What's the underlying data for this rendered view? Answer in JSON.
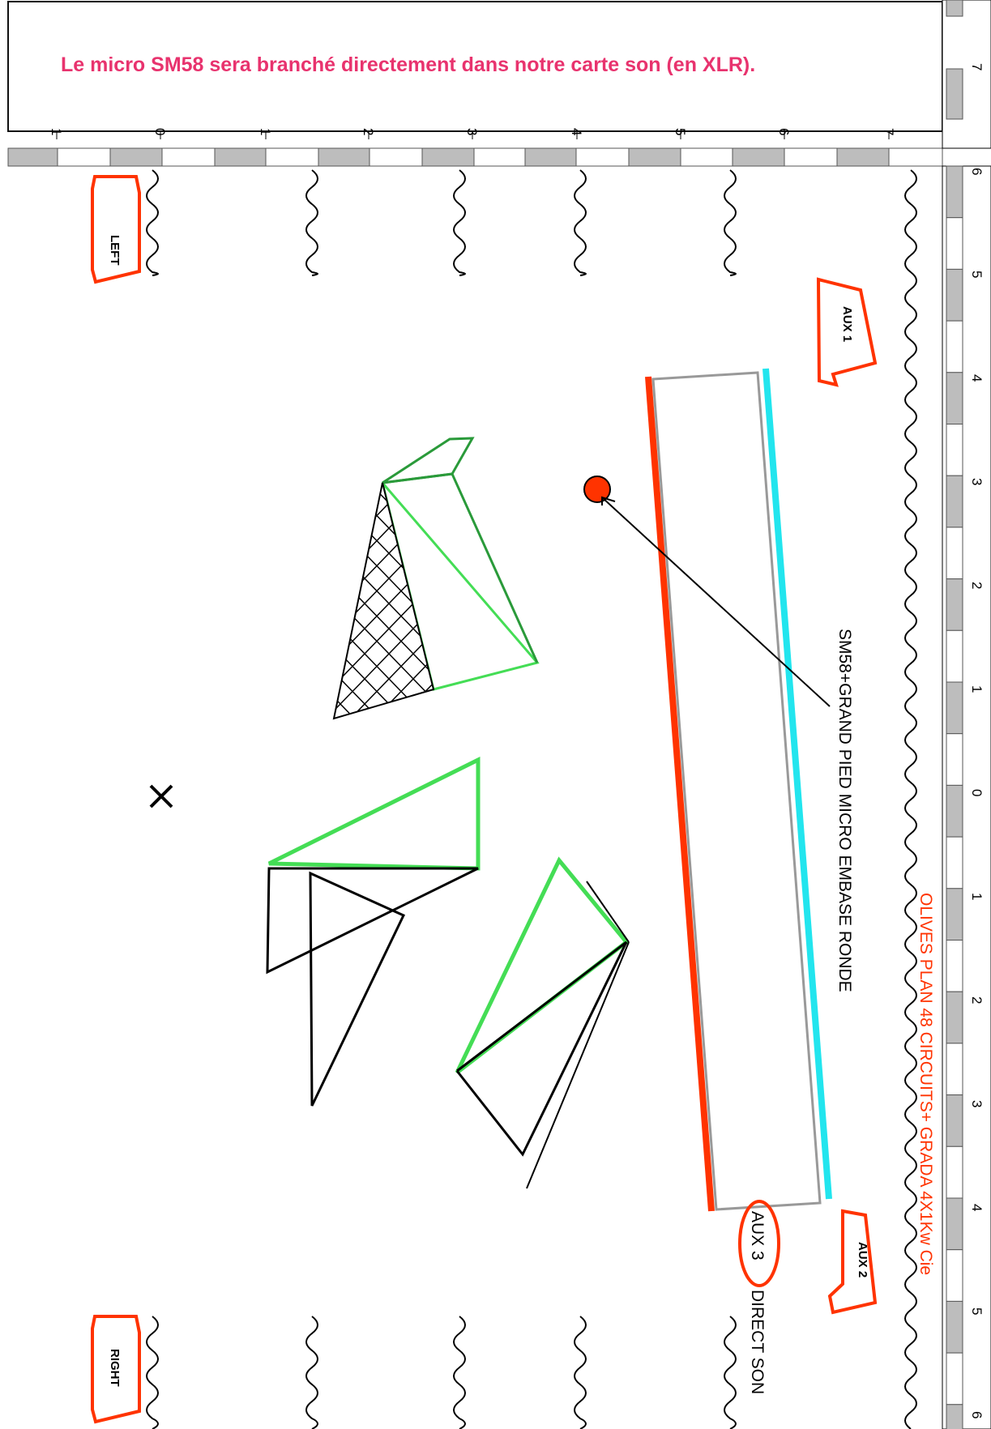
{
  "note": {
    "text": "Le micro SM58 sera branché directement dans notre carte son (en XLR).",
    "color": "#e8336e"
  },
  "ruler_top": {
    "labels": [
      "1",
      "0",
      "1",
      "2",
      "3",
      "4",
      "5",
      "6",
      "7"
    ]
  },
  "ruler_right": {
    "labels": [
      "6",
      "5",
      "4",
      "3",
      "2",
      "1",
      "0",
      "1",
      "2",
      "3",
      "4",
      "5",
      "6"
    ],
    "corner_label": "7"
  },
  "tags": {
    "left": "LEFT",
    "right": "RIGHT",
    "aux1": "AUX 1",
    "aux2": "AUX 2"
  },
  "labels": {
    "sm58": "SM58+GRAND PIED MICRO EMBASE RONDE",
    "aux3": "AUX 3",
    "direct_son": "DIRECT SON",
    "olives": "OLIVES PLAN  48 CIRCUITS+ GRADA 4X1Kw Cie"
  },
  "colors": {
    "accent_red": "#ff3300",
    "cyan": "#22e5ee",
    "green_light": "#44dd55",
    "green_dark": "#2a9a3a",
    "ruler_grey": "#bdbdbd",
    "platform_grey": "#999999"
  },
  "icons": [
    "cable-loop",
    "microphone-position",
    "centre-cross-mark"
  ]
}
